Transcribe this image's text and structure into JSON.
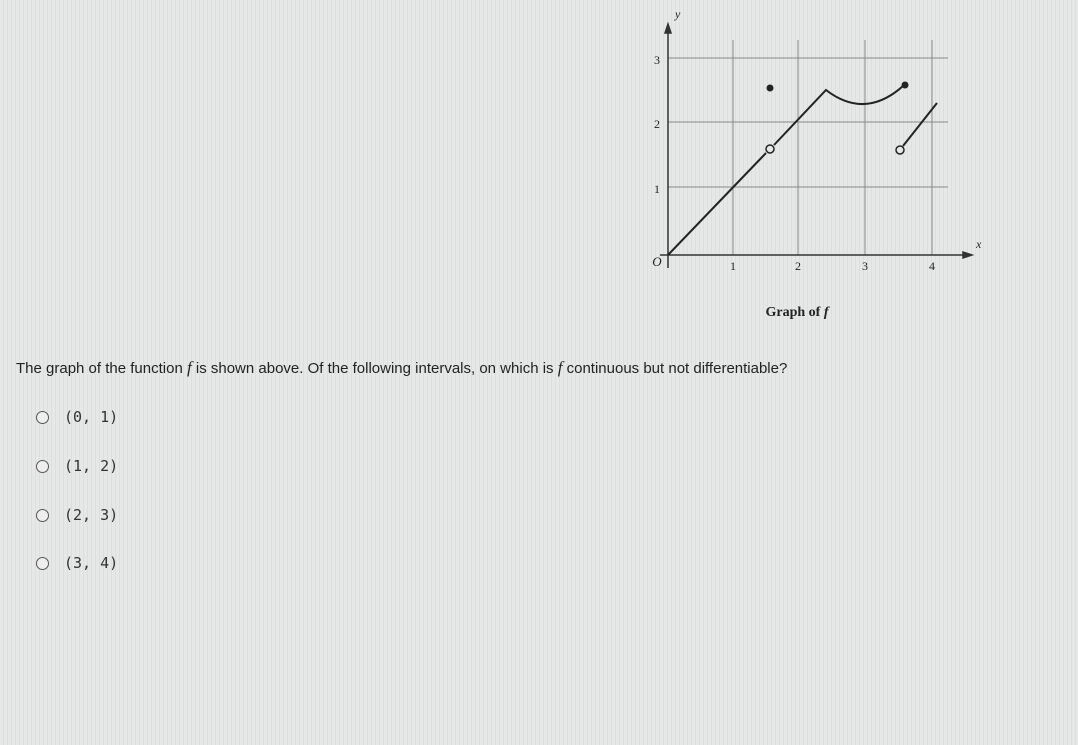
{
  "graph": {
    "y_axis_label": "y",
    "x_axis_label": "x",
    "origin_label": "O",
    "y_ticks": [
      "1",
      "2",
      "3"
    ],
    "x_ticks": [
      "1",
      "2",
      "3",
      "4"
    ],
    "caption": [
      "Graph of ",
      "f"
    ]
  },
  "question": [
    "The graph of the function ",
    "f",
    " is shown above. Of the following intervals, on which is ",
    "f",
    " continuous but not differentiable?"
  ],
  "options": [
    "(0, 1)",
    "(1, 2)",
    "(2, 3)",
    "(3, 4)"
  ]
}
